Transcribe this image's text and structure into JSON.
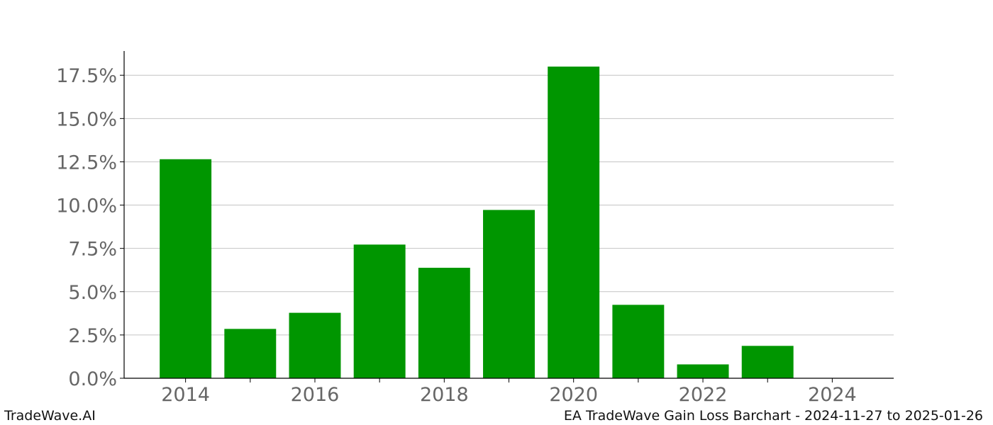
{
  "chart_data": {
    "type": "bar",
    "title": "",
    "xlabel": "",
    "ylabel": "",
    "categories": [
      "2014",
      "2015",
      "2016",
      "2017",
      "2018",
      "2019",
      "2020",
      "2021",
      "2022",
      "2023",
      "2024"
    ],
    "values": [
      12.65,
      2.85,
      3.78,
      7.72,
      6.38,
      9.72,
      18.0,
      4.24,
      0.8,
      1.87,
      0.0
    ],
    "x_tick_labels": [
      "2014",
      "2016",
      "2018",
      "2020",
      "2022",
      "2024"
    ],
    "y_tick_labels": [
      "0.0%",
      "2.5%",
      "5.0%",
      "7.5%",
      "10.0%",
      "12.5%",
      "15.0%",
      "17.5%"
    ],
    "y_ticks": [
      0,
      2.5,
      5,
      7.5,
      10,
      12.5,
      15,
      17.5
    ],
    "ylim": [
      0,
      18.9
    ],
    "xlim": [
      2013.05,
      2024.95
    ],
    "y_unit": "%",
    "grid": "horizontal",
    "bar_color": "#009600"
  },
  "footer": {
    "left": "TradeWave.AI",
    "right": "EA TradeWave Gain Loss Barchart - 2024-11-27 to 2025-01-26"
  }
}
